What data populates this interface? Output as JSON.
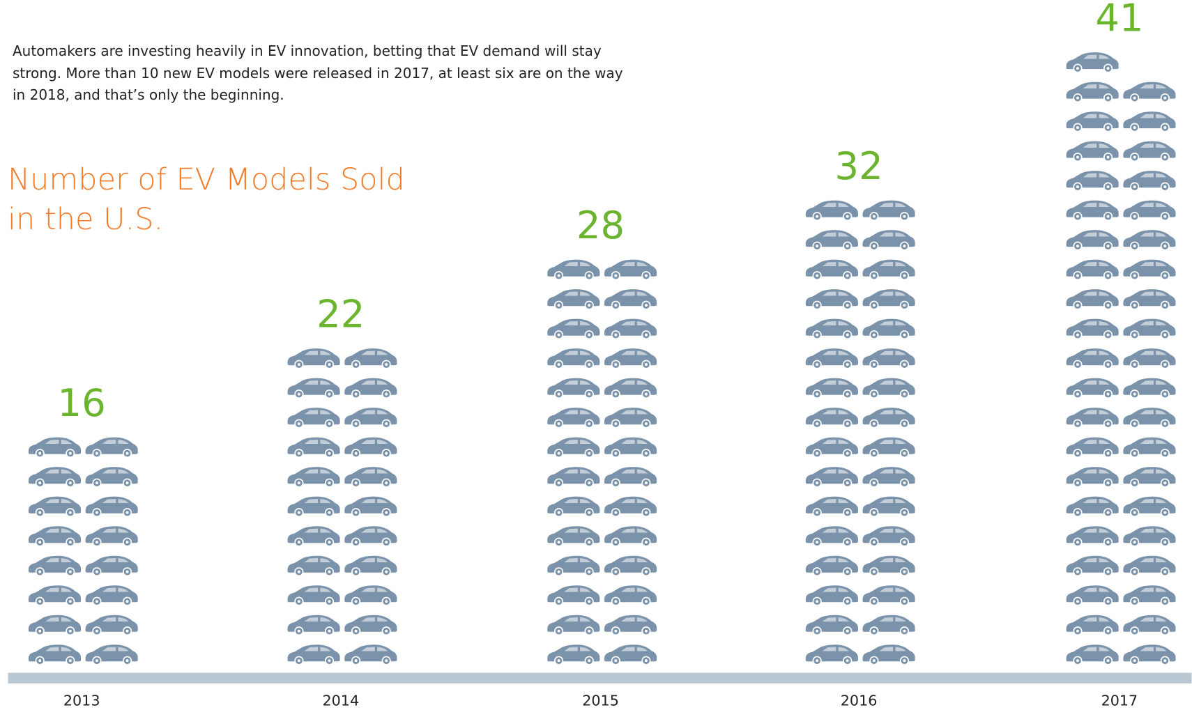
{
  "description": "Automakers are investing heavily in EV innovation, betting that EV demand will stay strong. More than 10 new EV models were released in 2017, at least six are on the way in 2018, and that’s only the beginning.",
  "chart_data": {
    "type": "pictograph",
    "title": "Number of EV Models Sold in the U.S.",
    "categories": [
      "2013",
      "2014",
      "2015",
      "2016",
      "2017"
    ],
    "values": [
      16,
      22,
      28,
      32,
      41
    ],
    "color": "#7b93aa",
    "label_color": "#6ab42e"
  }
}
